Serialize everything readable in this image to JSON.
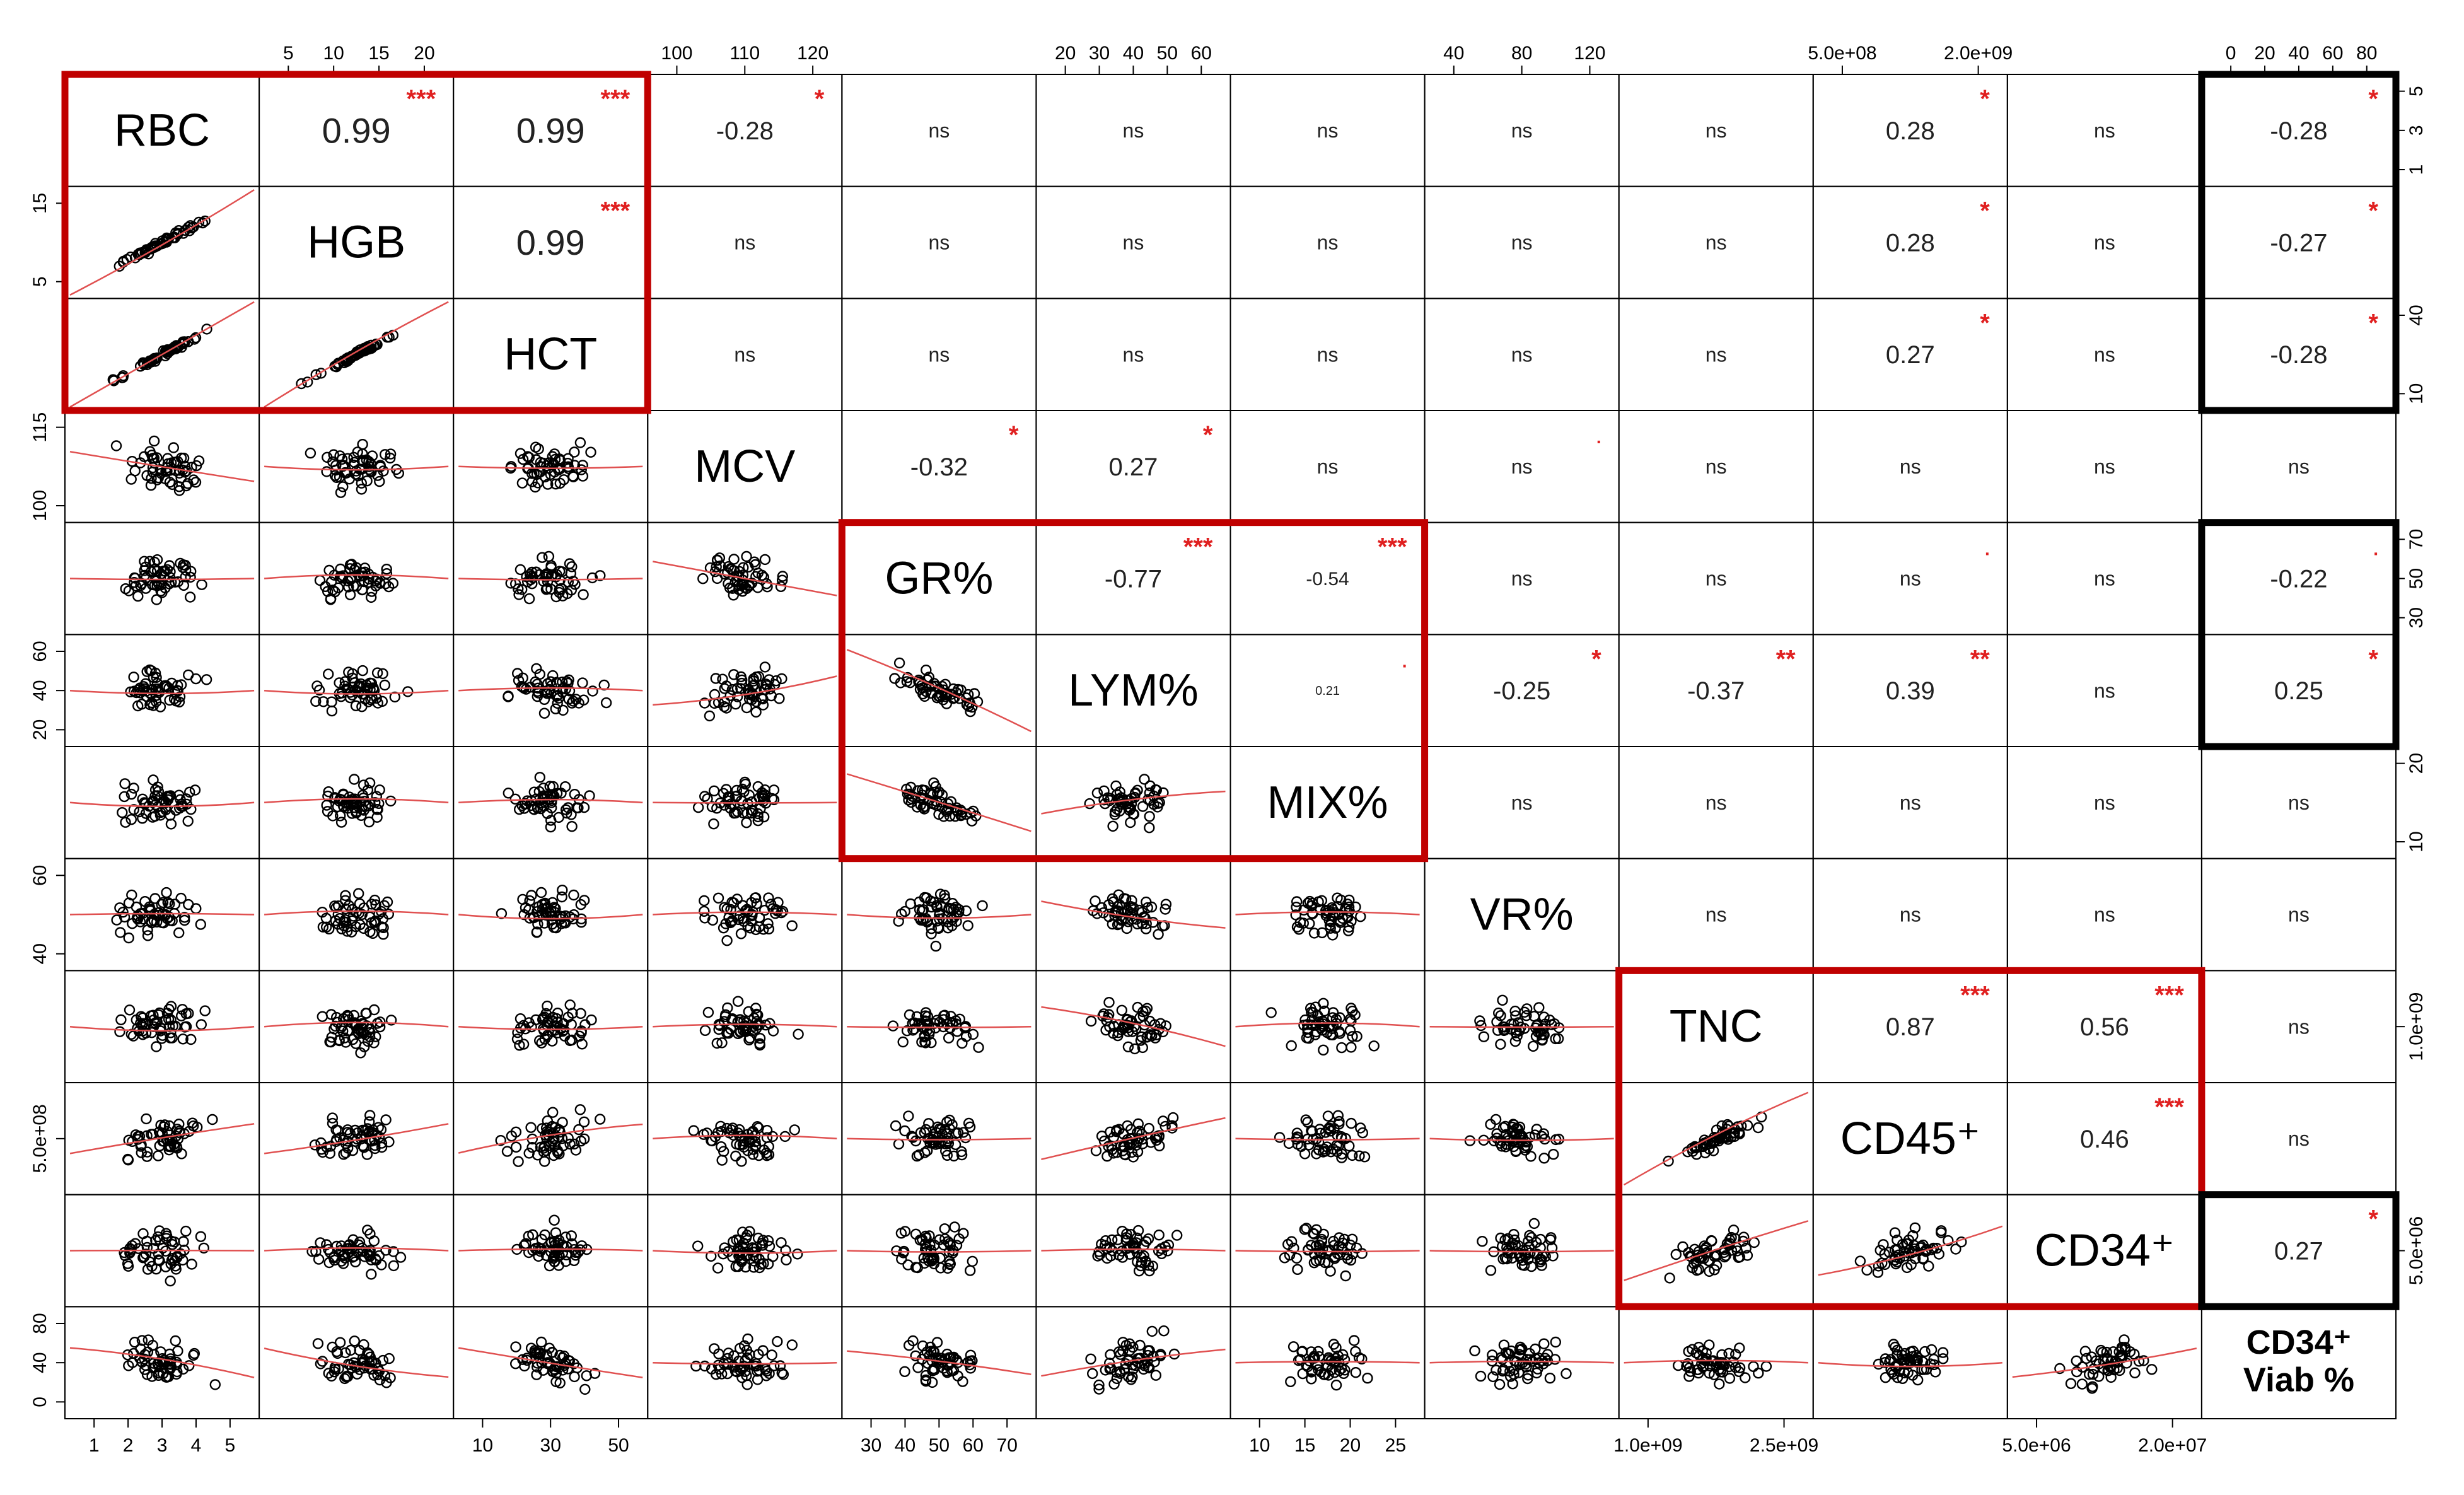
{
  "chart_data": {
    "type": "scatter",
    "variables": [
      "RBC",
      "HGB",
      "HCT",
      "MCV",
      "GR%",
      "LYM%",
      "MIX%",
      "VR%",
      "TNC",
      "CD45⁺",
      "CD34⁺",
      "CD34⁺ Viab %"
    ],
    "diagonal_labels": [
      "RBC",
      "HGB",
      "HCT",
      "MCV",
      "GR%",
      "LYM%",
      "MIX%",
      "VR%",
      "TNC",
      "CD45⁺",
      "CD34⁺",
      "CD34⁺\nViab %"
    ],
    "upper_triangle": [
      {
        "row": 0,
        "col": 1,
        "value": "0.99",
        "stars": "***"
      },
      {
        "row": 0,
        "col": 2,
        "value": "0.99",
        "stars": "***"
      },
      {
        "row": 0,
        "col": 3,
        "value": "-0.28",
        "stars": "*"
      },
      {
        "row": 0,
        "col": 4,
        "value": "ns",
        "stars": ""
      },
      {
        "row": 0,
        "col": 5,
        "value": "ns",
        "stars": ""
      },
      {
        "row": 0,
        "col": 6,
        "value": "ns",
        "stars": ""
      },
      {
        "row": 0,
        "col": 7,
        "value": "ns",
        "stars": ""
      },
      {
        "row": 0,
        "col": 8,
        "value": "ns",
        "stars": ""
      },
      {
        "row": 0,
        "col": 9,
        "value": "0.28",
        "stars": "*"
      },
      {
        "row": 0,
        "col": 10,
        "value": "ns",
        "stars": ""
      },
      {
        "row": 0,
        "col": 11,
        "value": "-0.28",
        "stars": "*"
      },
      {
        "row": 1,
        "col": 2,
        "value": "0.99",
        "stars": "***"
      },
      {
        "row": 1,
        "col": 3,
        "value": "ns",
        "stars": ""
      },
      {
        "row": 1,
        "col": 4,
        "value": "ns",
        "stars": ""
      },
      {
        "row": 1,
        "col": 5,
        "value": "ns",
        "stars": ""
      },
      {
        "row": 1,
        "col": 6,
        "value": "ns",
        "stars": ""
      },
      {
        "row": 1,
        "col": 7,
        "value": "ns",
        "stars": ""
      },
      {
        "row": 1,
        "col": 8,
        "value": "ns",
        "stars": ""
      },
      {
        "row": 1,
        "col": 9,
        "value": "0.28",
        "stars": "*"
      },
      {
        "row": 1,
        "col": 10,
        "value": "ns",
        "stars": ""
      },
      {
        "row": 1,
        "col": 11,
        "value": "-0.27",
        "stars": "*"
      },
      {
        "row": 2,
        "col": 3,
        "value": "ns",
        "stars": ""
      },
      {
        "row": 2,
        "col": 4,
        "value": "ns",
        "stars": ""
      },
      {
        "row": 2,
        "col": 5,
        "value": "ns",
        "stars": ""
      },
      {
        "row": 2,
        "col": 6,
        "value": "ns",
        "stars": ""
      },
      {
        "row": 2,
        "col": 7,
        "value": "ns",
        "stars": ""
      },
      {
        "row": 2,
        "col": 8,
        "value": "ns",
        "stars": ""
      },
      {
        "row": 2,
        "col": 9,
        "value": "0.27",
        "stars": "*"
      },
      {
        "row": 2,
        "col": 10,
        "value": "ns",
        "stars": ""
      },
      {
        "row": 2,
        "col": 11,
        "value": "-0.28",
        "stars": "*"
      },
      {
        "row": 3,
        "col": 4,
        "value": "-0.32",
        "stars": "*"
      },
      {
        "row": 3,
        "col": 5,
        "value": "0.27",
        "stars": "*"
      },
      {
        "row": 3,
        "col": 6,
        "value": "ns",
        "stars": ""
      },
      {
        "row": 3,
        "col": 7,
        "value": "ns",
        "stars": "."
      },
      {
        "row": 3,
        "col": 8,
        "value": "ns",
        "stars": ""
      },
      {
        "row": 3,
        "col": 9,
        "value": "ns",
        "stars": ""
      },
      {
        "row": 3,
        "col": 10,
        "value": "ns",
        "stars": ""
      },
      {
        "row": 3,
        "col": 11,
        "value": "ns",
        "stars": ""
      },
      {
        "row": 4,
        "col": 5,
        "value": "-0.77",
        "stars": "***"
      },
      {
        "row": 4,
        "col": 6,
        "value": "-0.54",
        "stars": "***"
      },
      {
        "row": 4,
        "col": 7,
        "value": "ns",
        "stars": ""
      },
      {
        "row": 4,
        "col": 8,
        "value": "ns",
        "stars": ""
      },
      {
        "row": 4,
        "col": 9,
        "value": "ns",
        "stars": "."
      },
      {
        "row": 4,
        "col": 10,
        "value": "ns",
        "stars": ""
      },
      {
        "row": 4,
        "col": 11,
        "value": "-0.22",
        "stars": "."
      },
      {
        "row": 5,
        "col": 6,
        "value": "0.21",
        "stars": "."
      },
      {
        "row": 5,
        "col": 7,
        "value": "-0.25",
        "stars": "*"
      },
      {
        "row": 5,
        "col": 8,
        "value": "-0.37",
        "stars": "**"
      },
      {
        "row": 5,
        "col": 9,
        "value": "0.39",
        "stars": "**"
      },
      {
        "row": 5,
        "col": 10,
        "value": "ns",
        "stars": ""
      },
      {
        "row": 5,
        "col": 11,
        "value": "0.25",
        "stars": "*"
      },
      {
        "row": 6,
        "col": 7,
        "value": "ns",
        "stars": ""
      },
      {
        "row": 6,
        "col": 8,
        "value": "ns",
        "stars": ""
      },
      {
        "row": 6,
        "col": 9,
        "value": "ns",
        "stars": ""
      },
      {
        "row": 6,
        "col": 10,
        "value": "ns",
        "stars": ""
      },
      {
        "row": 6,
        "col": 11,
        "value": "ns",
        "stars": ""
      },
      {
        "row": 7,
        "col": 8,
        "value": "ns",
        "stars": ""
      },
      {
        "row": 7,
        "col": 9,
        "value": "ns",
        "stars": ""
      },
      {
        "row": 7,
        "col": 10,
        "value": "ns",
        "stars": ""
      },
      {
        "row": 7,
        "col": 11,
        "value": "ns",
        "stars": ""
      },
      {
        "row": 8,
        "col": 9,
        "value": "0.87",
        "stars": "***"
      },
      {
        "row": 8,
        "col": 10,
        "value": "0.56",
        "stars": "***"
      },
      {
        "row": 8,
        "col": 11,
        "value": "ns",
        "stars": ""
      },
      {
        "row": 9,
        "col": 10,
        "value": "0.46",
        "stars": "***"
      },
      {
        "row": 9,
        "col": 11,
        "value": "ns",
        "stars": ""
      },
      {
        "row": 10,
        "col": 11,
        "value": "0.27",
        "stars": "*"
      }
    ],
    "axis_ticks": {
      "top": [
        {
          "col": 1,
          "labels": [
            "5",
            "10",
            "15",
            "20"
          ]
        },
        {
          "col": 3,
          "labels": [
            "100",
            "110",
            "120"
          ]
        },
        {
          "col": 5,
          "labels": [
            "20",
            "30",
            "40",
            "50",
            "60"
          ]
        },
        {
          "col": 7,
          "labels": [
            "40",
            "80",
            "120"
          ]
        },
        {
          "col": 9,
          "labels": [
            "5.0e+08",
            "2.0e+09"
          ]
        },
        {
          "col": 11,
          "labels": [
            "0",
            "20",
            "40",
            "60",
            "80"
          ]
        }
      ],
      "bottom": [
        {
          "col": 0,
          "labels": [
            "1",
            "2",
            "3",
            "4",
            "5"
          ]
        },
        {
          "col": 2,
          "labels": [
            "10",
            "30",
            "50"
          ]
        },
        {
          "col": 4,
          "labels": [
            "30",
            "40",
            "50",
            "60",
            "70"
          ]
        },
        {
          "col": 6,
          "labels": [
            "10",
            "15",
            "20",
            "25"
          ]
        },
        {
          "col": 8,
          "labels": [
            "1.0e+09",
            "2.5e+09"
          ]
        },
        {
          "col": 10,
          "labels": [
            "5.0e+06",
            "2.0e+07"
          ]
        }
      ],
      "left": [
        {
          "row": 1,
          "labels": [
            "5",
            "15"
          ]
        },
        {
          "row": 3,
          "labels": [
            "100",
            "115"
          ]
        },
        {
          "row": 5,
          "labels": [
            "20",
            "40",
            "60"
          ]
        },
        {
          "row": 7,
          "labels": [
            "40",
            "60"
          ]
        },
        {
          "row": 9,
          "labels": [
            "5.0e+08"
          ]
        },
        {
          "row": 11,
          "labels": [
            "0",
            "40",
            "80"
          ]
        }
      ],
      "right": [
        {
          "row": 0,
          "labels": [
            "1",
            "3",
            "5"
          ]
        },
        {
          "row": 2,
          "labels": [
            "10",
            "40"
          ]
        },
        {
          "row": 4,
          "labels": [
            "30",
            "50",
            "70"
          ]
        },
        {
          "row": 6,
          "labels": [
            "10",
            "20"
          ]
        },
        {
          "row": 8,
          "labels": [
            "1.0e+09"
          ]
        },
        {
          "row": 10,
          "labels": [
            "5.0e+06"
          ]
        }
      ]
    },
    "highlight_boxes": [
      {
        "color": "#c00000",
        "rows": [
          0,
          2
        ],
        "cols": [
          0,
          2
        ]
      },
      {
        "color": "#c00000",
        "rows": [
          4,
          6
        ],
        "cols": [
          4,
          6
        ]
      },
      {
        "color": "#c00000",
        "rows": [
          8,
          10
        ],
        "cols": [
          8,
          10
        ]
      },
      {
        "color": "#000000",
        "rows": [
          0,
          2
        ],
        "cols": [
          11,
          11
        ]
      },
      {
        "color": "#000000",
        "rows": [
          4,
          5
        ],
        "cols": [
          11,
          11
        ]
      },
      {
        "color": "#000000",
        "rows": [
          10,
          10
        ],
        "cols": [
          11,
          11
        ]
      }
    ],
    "lower_triangle": "scatter plots of each variable pair with red LOESS smoothing lines",
    "colors": {
      "points": "#000000",
      "smooth_line": "#e05050",
      "stars": "#e02020",
      "red_box": "#c00000",
      "black_box": "#000000"
    }
  }
}
